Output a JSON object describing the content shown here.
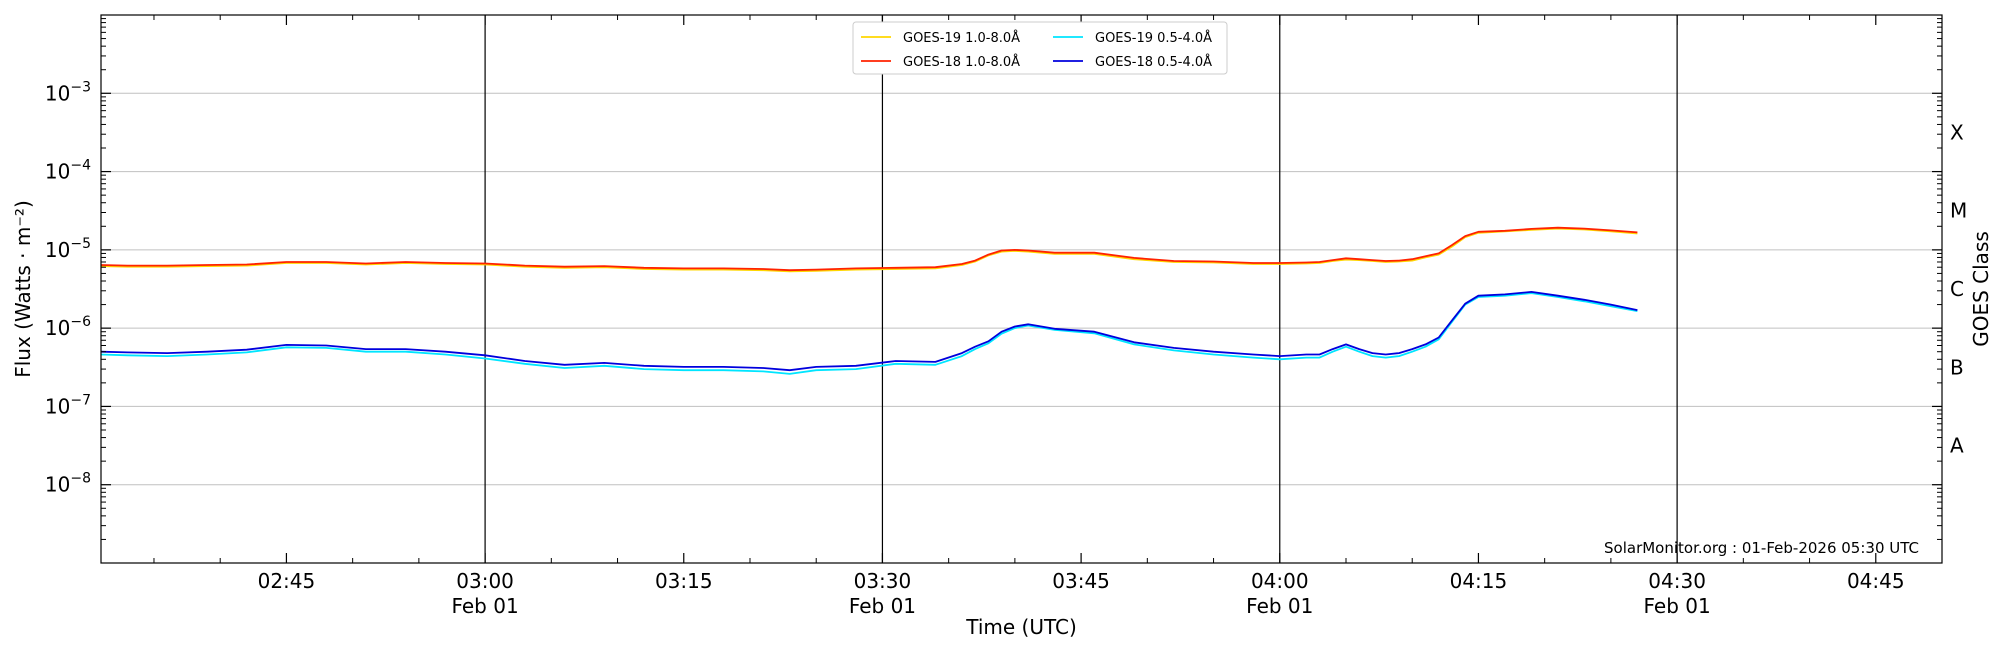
{
  "chart_data": {
    "type": "line",
    "title": "",
    "xlabel": "Time (UTC)",
    "ylabel": "Flux (Watts · m⁻²)",
    "ylabel_right": "GOES Class",
    "yscale": "log",
    "ylim": [
      1e-09,
      0.01
    ],
    "xlim": [
      "02:31",
      "04:50"
    ],
    "grid": "horizontal at decades",
    "legend_position": "top-center",
    "credit": "SolarMonitor.org : 01-Feb-2026 05:30 UTC",
    "y_ticks": [
      {
        "value": 1e-08,
        "base": "10",
        "exp": "−8"
      },
      {
        "value": 1e-07,
        "base": "10",
        "exp": "−7"
      },
      {
        "value": 1e-06,
        "base": "10",
        "exp": "−6"
      },
      {
        "value": 1e-05,
        "base": "10",
        "exp": "−5"
      },
      {
        "value": 0.0001,
        "base": "10",
        "exp": "−4"
      },
      {
        "value": 0.001,
        "base": "10",
        "exp": "−3"
      }
    ],
    "x_ticks": [
      {
        "time": "02:45",
        "label": "02:45",
        "date": ""
      },
      {
        "time": "03:00",
        "label": "03:00",
        "date": "Feb 01"
      },
      {
        "time": "03:15",
        "label": "03:15",
        "date": ""
      },
      {
        "time": "03:30",
        "label": "03:30",
        "date": "Feb 01"
      },
      {
        "time": "03:45",
        "label": "03:45",
        "date": ""
      },
      {
        "time": "04:00",
        "label": "04:00",
        "date": "Feb 01"
      },
      {
        "time": "04:15",
        "label": "04:15",
        "date": ""
      },
      {
        "time": "04:30",
        "label": "04:30",
        "date": "Feb 01"
      },
      {
        "time": "04:45",
        "label": "04:45",
        "date": ""
      }
    ],
    "vertical_lines": [
      "03:00",
      "03:30",
      "04:00",
      "04:30"
    ],
    "goes_classes": [
      {
        "label": "X",
        "value": 0.000316
      },
      {
        "label": "M",
        "value": 3.16e-05
      },
      {
        "label": "C",
        "value": 3.16e-06
      },
      {
        "label": "B",
        "value": 3.16e-07
      },
      {
        "label": "A",
        "value": 3.16e-08
      }
    ],
    "x": [
      "02:31",
      "02:33",
      "02:36",
      "02:39",
      "02:42",
      "02:45",
      "02:48",
      "02:51",
      "02:54",
      "02:57",
      "03:00",
      "03:03",
      "03:06",
      "03:09",
      "03:12",
      "03:15",
      "03:18",
      "03:21",
      "03:23",
      "03:25",
      "03:28",
      "03:31",
      "03:34",
      "03:36",
      "03:37",
      "03:38",
      "03:39",
      "03:40",
      "03:41",
      "03:43",
      "03:46",
      "03:49",
      "03:52",
      "03:55",
      "03:58",
      "04:00",
      "04:02",
      "04:03",
      "04:04",
      "04:05",
      "04:06",
      "04:07",
      "04:08",
      "04:09",
      "04:10",
      "04:11",
      "04:12",
      "04:13",
      "04:14",
      "04:15",
      "04:17",
      "04:19",
      "04:21",
      "04:23",
      "04:25",
      "04:27"
    ],
    "series": [
      {
        "name": "GOES-19 1.0-8.0Å",
        "color": "#FFD700",
        "values": [
          6.2e-06,
          6.1e-06,
          6.1e-06,
          6.2e-06,
          6.3e-06,
          6.8e-06,
          6.8e-06,
          6.5e-06,
          6.8e-06,
          6.6e-06,
          6.5e-06,
          6.1e-06,
          5.9e-06,
          6e-06,
          5.7e-06,
          5.6e-06,
          5.6e-06,
          5.5e-06,
          5.3e-06,
          5.4e-06,
          5.6e-06,
          5.7e-06,
          5.8e-06,
          6.4e-06,
          7.1e-06,
          8.5e-06,
          9.5e-06,
          9.7e-06,
          9.5e-06,
          8.9e-06,
          8.9e-06,
          7.6e-06,
          7e-06,
          6.9e-06,
          6.6e-06,
          6.6e-06,
          6.7e-06,
          6.8e-06,
          7.2e-06,
          7.5e-06,
          7.4e-06,
          7.2e-06,
          7e-06,
          7.1e-06,
          7.3e-06,
          8e-06,
          8.7e-06,
          1.1e-05,
          1.45e-05,
          1.65e-05,
          1.72e-05,
          1.8e-05,
          1.87e-05,
          1.82e-05,
          1.72e-05,
          1.62e-05
        ]
      },
      {
        "name": "GOES-18 1.0-8.0Å",
        "color": "#FF2200",
        "values": [
          6.4e-06,
          6.3e-06,
          6.3e-06,
          6.4e-06,
          6.5e-06,
          7e-06,
          7e-06,
          6.7e-06,
          7e-06,
          6.8e-06,
          6.7e-06,
          6.3e-06,
          6.1e-06,
          6.2e-06,
          5.9e-06,
          5.8e-06,
          5.8e-06,
          5.7e-06,
          5.5e-06,
          5.6e-06,
          5.8e-06,
          5.9e-06,
          6e-06,
          6.6e-06,
          7.3e-06,
          8.7e-06,
          9.8e-06,
          1e-05,
          9.8e-06,
          9.2e-06,
          9.2e-06,
          7.9e-06,
          7.2e-06,
          7.1e-06,
          6.8e-06,
          6.8e-06,
          6.9e-06,
          7e-06,
          7.4e-06,
          7.8e-06,
          7.6e-06,
          7.4e-06,
          7.2e-06,
          7.3e-06,
          7.6e-06,
          8.3e-06,
          9e-06,
          1.15e-05,
          1.5e-05,
          1.7e-05,
          1.75e-05,
          1.85e-05,
          1.92e-05,
          1.87e-05,
          1.77e-05,
          1.67e-05
        ]
      },
      {
        "name": "GOES-19 0.5-4.0Å",
        "color": "#00E5FF",
        "values": [
          4.6e-07,
          4.5e-07,
          4.4e-07,
          4.6e-07,
          4.9e-07,
          5.7e-07,
          5.6e-07,
          5e-07,
          5e-07,
          4.6e-07,
          4.1e-07,
          3.5e-07,
          3.1e-07,
          3.3e-07,
          3e-07,
          2.9e-07,
          2.9e-07,
          2.8e-07,
          2.6e-07,
          2.9e-07,
          3e-07,
          3.5e-07,
          3.4e-07,
          4.4e-07,
          5.4e-07,
          6.4e-07,
          8.5e-07,
          1e-06,
          1.08e-06,
          9.5e-07,
          8.6e-07,
          6.2e-07,
          5.2e-07,
          4.6e-07,
          4.2e-07,
          4e-07,
          4.2e-07,
          4.2e-07,
          5e-07,
          5.8e-07,
          5e-07,
          4.4e-07,
          4.2e-07,
          4.4e-07,
          5e-07,
          5.8e-07,
          7.2e-07,
          1.2e-06,
          2e-06,
          2.5e-06,
          2.6e-06,
          2.8e-06,
          2.5e-06,
          2.2e-06,
          1.9e-06,
          1.65e-06
        ]
      },
      {
        "name": "GOES-18 0.5-4.0Å",
        "color": "#0000DD",
        "values": [
          5e-07,
          4.9e-07,
          4.8e-07,
          5e-07,
          5.3e-07,
          6.1e-07,
          6e-07,
          5.4e-07,
          5.4e-07,
          5e-07,
          4.5e-07,
          3.8e-07,
          3.4e-07,
          3.6e-07,
          3.3e-07,
          3.2e-07,
          3.2e-07,
          3.1e-07,
          2.9e-07,
          3.2e-07,
          3.3e-07,
          3.8e-07,
          3.7e-07,
          4.8e-07,
          5.8e-07,
          6.8e-07,
          9e-07,
          1.05e-06,
          1.12e-06,
          9.8e-07,
          9e-07,
          6.6e-07,
          5.6e-07,
          5e-07,
          4.6e-07,
          4.4e-07,
          4.6e-07,
          4.6e-07,
          5.4e-07,
          6.2e-07,
          5.4e-07,
          4.8e-07,
          4.6e-07,
          4.8e-07,
          5.4e-07,
          6.2e-07,
          7.6e-07,
          1.25e-06,
          2.05e-06,
          2.6e-06,
          2.7e-06,
          2.9e-06,
          2.6e-06,
          2.3e-06,
          2e-06,
          1.7e-06
        ]
      }
    ]
  }
}
